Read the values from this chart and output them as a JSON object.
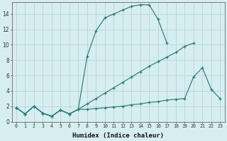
{
  "xlabel": "Humidex (Indice chaleur)",
  "background_color": "#d6eef0",
  "grid_color": "#b8d4d8",
  "line_color": "#2a7b78",
  "xlim": [
    -0.5,
    23.5
  ],
  "ylim": [
    0,
    15.5
  ],
  "yticks": [
    0,
    2,
    4,
    6,
    8,
    10,
    12,
    14
  ],
  "xticks": [
    0,
    1,
    2,
    3,
    4,
    5,
    6,
    7,
    8,
    9,
    10,
    11,
    12,
    13,
    14,
    15,
    16,
    17,
    18,
    19,
    20,
    21,
    22,
    23
  ],
  "curve1_x": [
    0,
    1,
    2,
    3,
    4,
    5,
    6,
    7,
    8,
    9,
    10,
    11,
    12,
    13,
    14,
    15,
    16,
    17
  ],
  "curve1_y": [
    1.8,
    1.0,
    2.0,
    1.1,
    0.7,
    1.5,
    1.0,
    1.6,
    8.5,
    11.8,
    13.5,
    14.0,
    14.5,
    15.0,
    15.2,
    15.2,
    13.3,
    10.2
  ],
  "curve2_x": [
    0,
    1,
    2,
    3,
    4,
    5,
    6,
    7,
    8,
    9,
    10,
    11,
    12,
    13,
    14,
    15,
    16,
    17,
    18,
    19,
    20,
    21,
    22,
    23
  ],
  "curve2_y": [
    1.8,
    1.0,
    2.0,
    1.1,
    0.7,
    1.5,
    1.0,
    1.6,
    2.3,
    3.0,
    3.7,
    4.4,
    5.1,
    5.8,
    6.5,
    7.2,
    7.8,
    8.4,
    9.0,
    9.8,
    10.2,
    null,
    null,
    null
  ],
  "curve3_x": [
    0,
    1,
    2,
    3,
    4,
    5,
    6,
    7,
    8,
    9,
    10,
    11,
    12,
    13,
    14,
    15,
    16,
    17,
    18,
    19,
    20,
    21,
    22,
    23
  ],
  "curve3_y": [
    1.8,
    1.0,
    2.0,
    1.1,
    0.7,
    1.5,
    1.0,
    1.6,
    1.6,
    1.7,
    1.8,
    1.9,
    2.0,
    2.2,
    2.3,
    2.5,
    2.6,
    2.8,
    2.9,
    3.0,
    5.8,
    7.0,
    4.2,
    3.0
  ]
}
